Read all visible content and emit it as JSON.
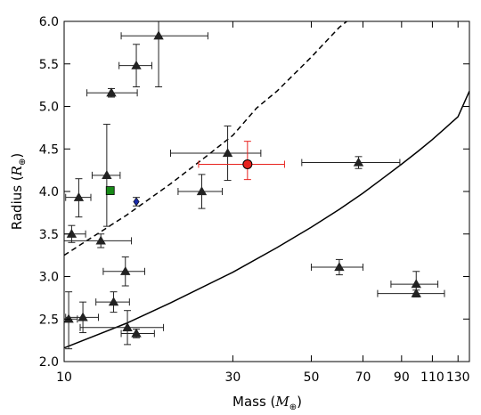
{
  "chart_data": {
    "type": "scatter",
    "x_scale": "log",
    "xlabel": "Mass",
    "xlabel_unit": "M",
    "xlabel_unit_sub": "⊕",
    "ylabel": "Radius",
    "ylabel_unit": "R",
    "ylabel_unit_sub": "⊕",
    "xlim": [
      10,
      140
    ],
    "ylim": [
      2.0,
      6.0
    ],
    "x_ticks": [
      10,
      30,
      50,
      70,
      90,
      110,
      130
    ],
    "x_tick_labels": [
      "10",
      "30",
      "50",
      "70",
      "90",
      "110",
      "130"
    ],
    "y_ticks": [
      2.0,
      2.5,
      3.0,
      3.5,
      4.0,
      4.5,
      5.0,
      5.5,
      6.0
    ],
    "y_tick_labels": [
      "2.0",
      "2.5",
      "3.0",
      "3.5",
      "4.0",
      "4.5",
      "5.0",
      "5.5",
      "6.0"
    ],
    "grid": false,
    "series": [
      {
        "marker": "triangle",
        "color": "#222222",
        "points": [
          {
            "x": 10.3,
            "y": 2.5,
            "xerr": [
              0.6,
              0.6
            ],
            "yerr": [
              0.35,
              0.32
            ]
          },
          {
            "x": 10.5,
            "y": 3.5,
            "xerr": [
              0.6,
              1.0
            ],
            "yerr": [
              0.1,
              0.1
            ]
          },
          {
            "x": 11.0,
            "y": 3.93,
            "xerr": [
              0.9,
              0.9
            ],
            "yerr": [
              0.23,
              0.22
            ]
          },
          {
            "x": 11.3,
            "y": 2.52,
            "xerr": [
              1.2,
              1.2
            ],
            "yerr": [
              0.18,
              0.18
            ]
          },
          {
            "x": 12.7,
            "y": 3.42,
            "xerr": [
              2.8,
              2.8
            ],
            "yerr": [
              0.08,
              0.08
            ]
          },
          {
            "x": 13.6,
            "y": 5.16,
            "xerr": [
              2.0,
              2.5
            ],
            "yerr": [
              0.05,
              0.05
            ]
          },
          {
            "x": 13.2,
            "y": 4.19,
            "xerr": [
              1.2,
              1.2
            ],
            "yerr": [
              0.6,
              0.6
            ]
          },
          {
            "x": 13.8,
            "y": 2.7,
            "xerr": [
              1.5,
              1.5
            ],
            "yerr": [
              0.12,
              0.12
            ]
          },
          {
            "x": 14.9,
            "y": 3.06,
            "xerr": [
              2.0,
              2.0
            ],
            "yerr": [
              0.17,
              0.17
            ]
          },
          {
            "x": 15.1,
            "y": 2.4,
            "xerr": [
              4.0,
              4.0
            ],
            "yerr": [
              0.2,
              0.2
            ]
          },
          {
            "x": 16.0,
            "y": 2.33,
            "xerr": [
              1.5,
              2.0
            ],
            "yerr": [
              0.05,
              0.05
            ]
          },
          {
            "x": 16.0,
            "y": 5.48,
            "xerr": [
              1.7,
              1.7
            ],
            "yerr": [
              0.25,
              0.25
            ]
          },
          {
            "x": 18.5,
            "y": 5.83,
            "xerr": [
              4.0,
              7.0
            ],
            "yerr": [
              0.6,
              0.17
            ]
          },
          {
            "x": 24.5,
            "y": 4.0,
            "xerr": [
              3.5,
              3.5
            ],
            "yerr": [
              0.2,
              0.2
            ]
          },
          {
            "x": 29.0,
            "y": 4.45,
            "xerr": [
              9.0,
              7.0
            ],
            "yerr": [
              0.32,
              0.32
            ]
          },
          {
            "x": 60.0,
            "y": 3.11,
            "xerr": [
              10.0,
              10.0
            ],
            "yerr": [
              0.09,
              0.09
            ]
          },
          {
            "x": 68.0,
            "y": 4.34,
            "xerr": [
              21.0,
              21.0
            ],
            "yerr": [
              0.07,
              0.07
            ]
          },
          {
            "x": 99.0,
            "y": 2.91,
            "xerr": [
              15.0,
              15.0
            ],
            "yerr": [
              0.15,
              0.15
            ]
          },
          {
            "x": 99.0,
            "y": 2.8,
            "xerr": [
              22.0,
              20.0
            ],
            "yerr": [
              0.04,
              0.04
            ]
          }
        ]
      },
      {
        "marker": "circle",
        "color": "#e8231e",
        "points": [
          {
            "x": 33.0,
            "y": 4.32,
            "xerr": [
              9.0,
              9.0
            ],
            "yerr": [
              0.18,
              0.27
            ]
          }
        ]
      },
      {
        "marker": "square",
        "color": "#188a18",
        "points": [
          {
            "x": 13.5,
            "y": 4.01
          }
        ]
      },
      {
        "marker": "diamond",
        "color": "#1a2aa8",
        "points": [
          {
            "x": 16.0,
            "y": 3.88,
            "yerr": [
              0.05,
              0.05
            ]
          }
        ]
      }
    ],
    "curves": [
      {
        "style": "dashed",
        "color": "#000000",
        "x": [
          10,
          15,
          20,
          25,
          30,
          35,
          40,
          50,
          60,
          63
        ],
        "y": [
          3.25,
          3.72,
          4.09,
          4.4,
          4.66,
          4.98,
          5.18,
          5.58,
          5.93,
          6.0
        ]
      },
      {
        "style": "solid",
        "color": "#000000",
        "x": [
          10,
          15,
          20,
          30,
          40,
          50,
          60,
          70,
          80,
          90,
          100,
          110,
          120,
          130,
          140
        ],
        "y": [
          2.16,
          2.45,
          2.69,
          3.05,
          3.34,
          3.58,
          3.79,
          3.98,
          4.16,
          4.32,
          4.47,
          4.61,
          4.75,
          4.88,
          5.18
        ]
      }
    ]
  }
}
